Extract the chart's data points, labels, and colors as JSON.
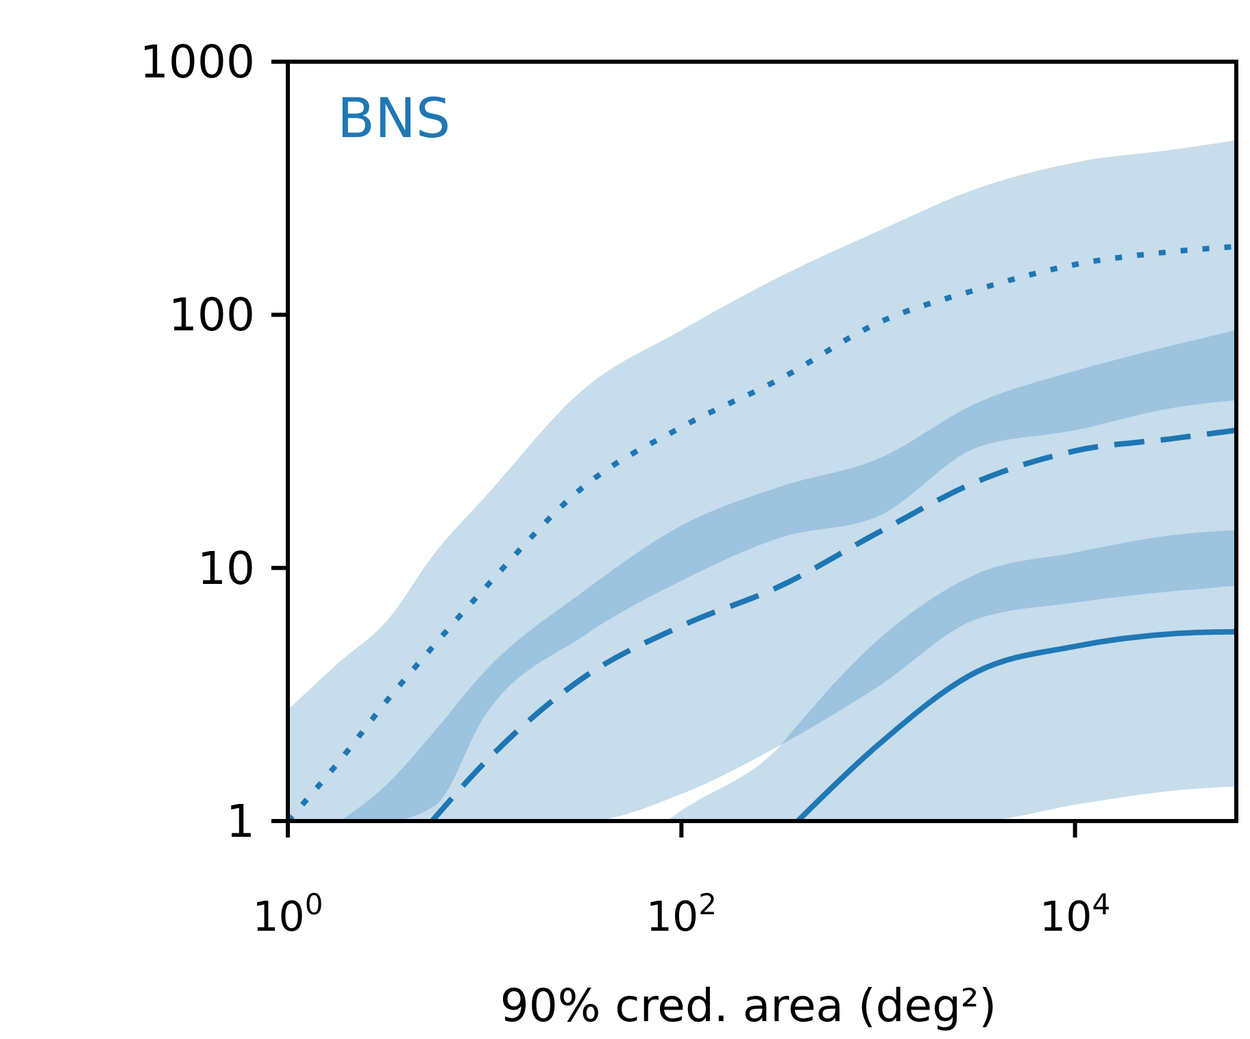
{
  "chart_data": {
    "type": "line",
    "xlabel": "90% cred. area (deg²)",
    "log": "xy",
    "x": [
      1,
      1.8,
      3.2,
      5.6,
      10,
      32,
      100,
      320,
      1000,
      3200,
      10000,
      32000,
      66000
    ],
    "xlim": [
      1,
      66000
    ],
    "xticks": [
      {
        "value": 1,
        "label": "10$^{0}$"
      },
      {
        "value": 100,
        "label": "10$^{2}$"
      },
      {
        "value": 10000,
        "label": "10$^{4}$"
      }
    ],
    "ylim": [
      1,
      1000
    ],
    "yticks": [
      1,
      10,
      100,
      1000
    ],
    "annotations": [
      "BNS"
    ],
    "series": [
      {
        "color": "#1f77b4",
        "line_style": "dotted",
        "values": [
          1.0,
          1.7,
          3.0,
          5.0,
          8.3,
          21,
          36,
          56,
          93,
          126,
          158,
          178,
          186
        ],
        "lower": [
          1,
          1,
          1,
          1.15,
          2.6,
          5.4,
          8.9,
          13.2,
          16,
          30,
          35,
          43,
          46
        ],
        "upper": [
          2.75,
          4.2,
          6.2,
          11.5,
          19,
          51,
          87,
          142,
          214,
          316,
          400,
          450,
          490
        ]
      },
      {
        "color": "#1e76b3",
        "line_style": "dashed",
        "x": [
          1.85,
          3.2,
          5.4,
          10,
          32,
          100,
          320,
          1000,
          3200,
          10000,
          32000,
          66000
        ],
        "values": [
          null,
          null,
          1.0,
          1.7,
          3.7,
          5.9,
          8.5,
          13.8,
          22,
          29,
          32.5,
          35
        ],
        "lower": [
          1,
          1,
          1,
          1,
          1,
          1.28,
          2.0,
          3.4,
          6.3,
          7.3,
          8.1,
          8.5
        ],
        "upper": [
          1,
          1.4,
          2.2,
          3.9,
          8.1,
          14.7,
          21,
          27,
          45,
          60,
          76,
          87
        ]
      },
      {
        "color": "#2078b5",
        "line_style": "solid",
        "x": [
          84,
          100,
          320,
          390,
          1000,
          3200,
          10000,
          32000,
          66000
        ],
        "values": [
          null,
          null,
          null,
          1.0,
          2.0,
          3.9,
          4.9,
          5.5,
          5.6
        ],
        "lower": [
          1,
          1,
          1,
          1,
          1,
          1,
          1.16,
          1.32,
          1.37
        ],
        "upper": [
          1,
          1.1,
          2.0,
          2.4,
          5.2,
          9.5,
          11.5,
          13.5,
          14.1
        ]
      }
    ]
  }
}
